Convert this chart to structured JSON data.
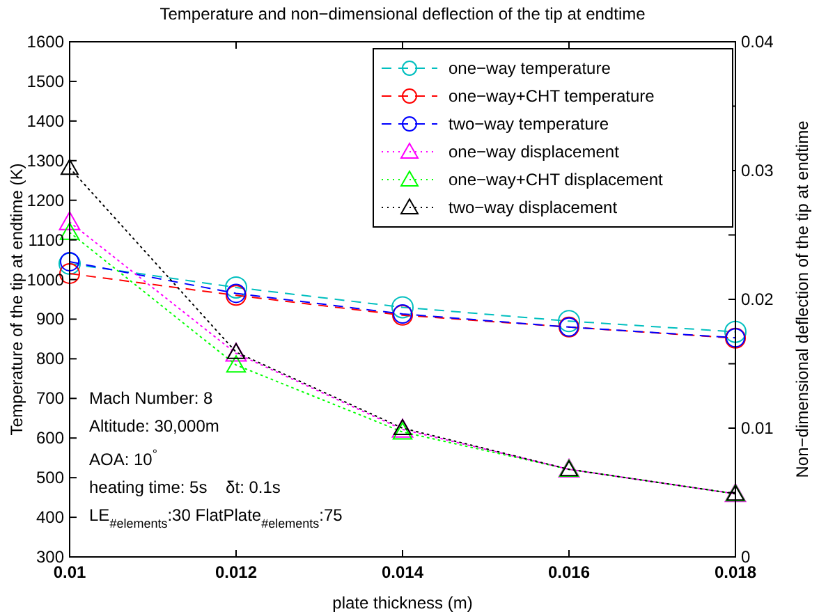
{
  "chart_data": {
    "type": "line",
    "title": "Temperature and non−dimensional deflection of the tip at endtime",
    "xlabel": "plate thickness (m)",
    "ylabel": "Temperature of the tip at endtime (K)",
    "y2label": "Non−dimensional deflection of the tip at endtime",
    "x": [
      0.01,
      0.012,
      0.014,
      0.016,
      0.018
    ],
    "xlim": [
      0.01,
      0.018
    ],
    "xticks": [
      0.01,
      0.012,
      0.014,
      0.016,
      0.018
    ],
    "ylim": [
      300,
      1600
    ],
    "yticks": [
      300,
      400,
      500,
      600,
      700,
      800,
      900,
      1000,
      1100,
      1200,
      1300,
      1400,
      1500,
      1600
    ],
    "y2lim": [
      0,
      0.04
    ],
    "y2ticks": [
      0,
      {
        "value": 0.005,
        "label": null
      },
      0.01,
      {
        "value": 0.015,
        "label": null
      },
      0.02,
      {
        "value": 0.025,
        "label": null
      },
      0.03,
      {
        "value": 0.035,
        "label": null
      },
      0.04
    ],
    "grid": false,
    "legend": "top right",
    "series": [
      {
        "name": "one−way temperature",
        "color": "#00bfbf",
        "marker": "circle",
        "line_style": "dashed",
        "values": [
          1040,
          980,
          930,
          895,
          868
        ]
      },
      {
        "name": "one−way+CHT temperature",
        "color": "#ff0000",
        "marker": "circle",
        "line_style": "dashed",
        "values": [
          1015,
          960,
          910,
          880,
          852
        ]
      },
      {
        "name": "two−way temperature",
        "color": "#0000ff",
        "marker": "circle",
        "line_style": "dashed",
        "values": [
          1045,
          965,
          913,
          880,
          853
        ]
      },
      {
        "name": "one−way displacement",
        "color": "#ff00ff",
        "marker": "triangle",
        "line_style": "dotted",
        "axis": "y2",
        "values": [
          0.026,
          0.0158,
          0.0099,
          0.0068,
          0.0049
        ]
      },
      {
        "name": "one−way+CHT displacement",
        "color": "#00ff00",
        "marker": "triangle",
        "line_style": "dotted",
        "axis": "y2",
        "values": [
          0.0252,
          0.0149,
          0.0097,
          0.0068,
          0.0049
        ]
      },
      {
        "name": "two−way displacement",
        "color": "#000000",
        "marker": "triangle",
        "line_style": "dotted",
        "axis": "y2",
        "values": [
          0.0302,
          0.0159,
          0.01,
          0.0068,
          0.0049
        ]
      }
    ],
    "annotations": [
      "Mach Number: 8",
      "Altitude: 30,000m",
      "AOA: 10$^{°}$",
      "heating time: 5s    δt: 0.1s",
      "LE$_{#elements}$:30 FlatPlate$_{#elements}$:75"
    ]
  }
}
